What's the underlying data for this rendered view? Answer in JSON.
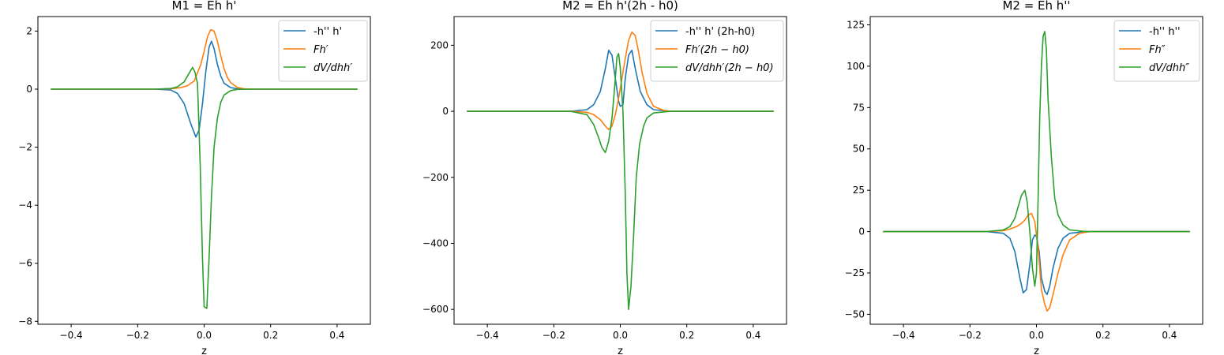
{
  "chart_data": [
    {
      "type": "line",
      "title": "M1 = Eh h'",
      "xlabel": "z",
      "ylabel": "",
      "xlim": [
        -0.5,
        0.5
      ],
      "ylim": [
        -8.1,
        2.5
      ],
      "xticks": [
        -0.4,
        -0.2,
        0.0,
        0.2,
        0.4
      ],
      "xtick_labels": [
        "−0.4",
        "−0.2",
        "0.0",
        "0.2",
        "0.4"
      ],
      "yticks": [
        -8,
        -6,
        -4,
        -2,
        0,
        2
      ],
      "ytick_labels": [
        "−8",
        "−6",
        "−4",
        "−2",
        "0",
        "2"
      ],
      "legend_position": "upper right",
      "series": [
        {
          "name": "-h'' h'",
          "color": "#1f77b4",
          "points": [
            [
              -0.46,
              0
            ],
            [
              -0.3,
              0
            ],
            [
              -0.15,
              0
            ],
            [
              -0.1,
              -0.03
            ],
            [
              -0.08,
              -0.15
            ],
            [
              -0.06,
              -0.5
            ],
            [
              -0.04,
              -1.2
            ],
            [
              -0.025,
              -1.65
            ],
            [
              -0.015,
              -1.4
            ],
            [
              -0.005,
              -0.5
            ],
            [
              0.005,
              0.6
            ],
            [
              0.015,
              1.45
            ],
            [
              0.022,
              1.65
            ],
            [
              0.03,
              1.4
            ],
            [
              0.04,
              0.85
            ],
            [
              0.05,
              0.45
            ],
            [
              0.06,
              0.2
            ],
            [
              0.08,
              0.05
            ],
            [
              0.1,
              0.01
            ],
            [
              0.15,
              0
            ],
            [
              0.3,
              0
            ],
            [
              0.46,
              0
            ]
          ]
        },
        {
          "name": "Fh′",
          "color": "#ff7f0e",
          "points": [
            [
              -0.46,
              0
            ],
            [
              -0.3,
              0
            ],
            [
              -0.15,
              0
            ],
            [
              -0.1,
              0.01
            ],
            [
              -0.07,
              0.05
            ],
            [
              -0.05,
              0.12
            ],
            [
              -0.03,
              0.28
            ],
            [
              -0.01,
              0.85
            ],
            [
              0.0,
              1.3
            ],
            [
              0.01,
              1.8
            ],
            [
              0.02,
              2.05
            ],
            [
              0.03,
              2.0
            ],
            [
              0.04,
              1.65
            ],
            [
              0.05,
              1.15
            ],
            [
              0.06,
              0.7
            ],
            [
              0.07,
              0.4
            ],
            [
              0.08,
              0.22
            ],
            [
              0.1,
              0.06
            ],
            [
              0.12,
              0.01
            ],
            [
              0.15,
              0
            ],
            [
              0.3,
              0
            ],
            [
              0.46,
              0
            ]
          ]
        },
        {
          "name": "dV/dhh′",
          "color": "#2ca02c",
          "points": [
            [
              -0.46,
              0
            ],
            [
              -0.3,
              0
            ],
            [
              -0.15,
              0
            ],
            [
              -0.1,
              0.02
            ],
            [
              -0.08,
              0.08
            ],
            [
              -0.06,
              0.25
            ],
            [
              -0.045,
              0.55
            ],
            [
              -0.035,
              0.75
            ],
            [
              -0.028,
              0.6
            ],
            [
              -0.02,
              0.2
            ],
            [
              -0.012,
              -2.5
            ],
            [
              -0.005,
              -5.8
            ],
            [
              0.0,
              -7.5
            ],
            [
              0.008,
              -7.55
            ],
            [
              0.015,
              -5.8
            ],
            [
              0.022,
              -3.7
            ],
            [
              0.03,
              -2.0
            ],
            [
              0.04,
              -1.0
            ],
            [
              0.05,
              -0.45
            ],
            [
              0.06,
              -0.2
            ],
            [
              0.08,
              -0.05
            ],
            [
              0.1,
              -0.01
            ],
            [
              0.15,
              0
            ],
            [
              0.3,
              0
            ],
            [
              0.46,
              0
            ]
          ]
        }
      ]
    },
    {
      "type": "line",
      "title": "M2 = Eh h'(2h - h0)",
      "xlabel": "z",
      "ylabel": "",
      "xlim": [
        -0.5,
        0.5
      ],
      "ylim": [
        -645,
        287
      ],
      "xticks": [
        -0.4,
        -0.2,
        0.0,
        0.2,
        0.4
      ],
      "xtick_labels": [
        "−0.4",
        "−0.2",
        "0.0",
        "0.2",
        "0.4"
      ],
      "yticks": [
        -600,
        -400,
        -200,
        0,
        200
      ],
      "ytick_labels": [
        "−600",
        "−400",
        "−200",
        "0",
        "200"
      ],
      "legend_position": "upper right",
      "series": [
        {
          "name": "-h'' h' (2h-h0)",
          "color": "#1f77b4",
          "points": [
            [
              -0.46,
              0
            ],
            [
              -0.3,
              0
            ],
            [
              -0.15,
              0
            ],
            [
              -0.1,
              5
            ],
            [
              -0.08,
              20
            ],
            [
              -0.06,
              60
            ],
            [
              -0.045,
              130
            ],
            [
              -0.035,
              185
            ],
            [
              -0.025,
              170
            ],
            [
              -0.015,
              100
            ],
            [
              -0.005,
              30
            ],
            [
              0.0,
              15
            ],
            [
              0.008,
              20
            ],
            [
              0.015,
              100
            ],
            [
              0.025,
              170
            ],
            [
              0.035,
              185
            ],
            [
              0.045,
              130
            ],
            [
              0.06,
              60
            ],
            [
              0.08,
              20
            ],
            [
              0.1,
              5
            ],
            [
              0.15,
              0
            ],
            [
              0.3,
              0
            ],
            [
              0.46,
              0
            ]
          ]
        },
        {
          "name": "Fh′(2h − h0)",
          "color": "#ff7f0e",
          "points": [
            [
              -0.46,
              0
            ],
            [
              -0.3,
              0
            ],
            [
              -0.15,
              0
            ],
            [
              -0.1,
              -3
            ],
            [
              -0.08,
              -10
            ],
            [
              -0.06,
              -25
            ],
            [
              -0.045,
              -45
            ],
            [
              -0.035,
              -55
            ],
            [
              -0.025,
              -45
            ],
            [
              -0.015,
              -10
            ],
            [
              -0.005,
              40
            ],
            [
              0.005,
              100
            ],
            [
              0.015,
              160
            ],
            [
              0.025,
              215
            ],
            [
              0.035,
              240
            ],
            [
              0.045,
              230
            ],
            [
              0.055,
              180
            ],
            [
              0.065,
              120
            ],
            [
              0.08,
              55
            ],
            [
              0.1,
              15
            ],
            [
              0.13,
              3
            ],
            [
              0.15,
              0
            ],
            [
              0.3,
              0
            ],
            [
              0.46,
              0
            ]
          ]
        },
        {
          "name": "dV/dhh′(2h − h0)",
          "color": "#2ca02c",
          "points": [
            [
              -0.46,
              0
            ],
            [
              -0.3,
              0
            ],
            [
              -0.15,
              0
            ],
            [
              -0.1,
              -10
            ],
            [
              -0.08,
              -40
            ],
            [
              -0.065,
              -80
            ],
            [
              -0.055,
              -110
            ],
            [
              -0.045,
              -125
            ],
            [
              -0.035,
              -90
            ],
            [
              -0.025,
              -20
            ],
            [
              -0.018,
              60
            ],
            [
              -0.01,
              165
            ],
            [
              -0.005,
              175
            ],
            [
              0.0,
              130
            ],
            [
              0.008,
              0
            ],
            [
              0.015,
              -250
            ],
            [
              0.02,
              -490
            ],
            [
              0.025,
              -600
            ],
            [
              0.032,
              -530
            ],
            [
              0.04,
              -380
            ],
            [
              0.048,
              -200
            ],
            [
              0.058,
              -100
            ],
            [
              0.07,
              -45
            ],
            [
              0.08,
              -20
            ],
            [
              0.1,
              -5
            ],
            [
              0.15,
              0
            ],
            [
              0.3,
              0
            ],
            [
              0.46,
              0
            ]
          ]
        }
      ]
    },
    {
      "type": "line",
      "title": "M2 = Eh h''",
      "xlabel": "z",
      "ylabel": "",
      "xlim": [
        -0.5,
        0.5
      ],
      "ylim": [
        -56,
        130
      ],
      "xticks": [
        -0.4,
        -0.2,
        0.0,
        0.2,
        0.4
      ],
      "xtick_labels": [
        "−0.4",
        "−0.2",
        "0.0",
        "0.2",
        "0.4"
      ],
      "yticks": [
        -50,
        -25,
        0,
        25,
        50,
        75,
        100,
        125
      ],
      "ytick_labels": [
        "−50",
        "−25",
        "0",
        "25",
        "50",
        "75",
        "100",
        "125"
      ],
      "legend_position": "upper right",
      "series": [
        {
          "name": "-h'' h''",
          "color": "#1f77b4",
          "points": [
            [
              -0.46,
              0
            ],
            [
              -0.3,
              0
            ],
            [
              -0.15,
              0
            ],
            [
              -0.1,
              -1
            ],
            [
              -0.08,
              -4
            ],
            [
              -0.065,
              -12
            ],
            [
              -0.05,
              -28
            ],
            [
              -0.04,
              -37
            ],
            [
              -0.03,
              -35
            ],
            [
              -0.02,
              -20
            ],
            [
              -0.012,
              -5
            ],
            [
              -0.005,
              -2
            ],
            [
              0.0,
              -3
            ],
            [
              0.008,
              -12
            ],
            [
              0.015,
              -28
            ],
            [
              0.025,
              -36
            ],
            [
              0.032,
              -38
            ],
            [
              0.04,
              -33
            ],
            [
              0.05,
              -22
            ],
            [
              0.065,
              -10
            ],
            [
              0.08,
              -4
            ],
            [
              0.1,
              -1
            ],
            [
              0.15,
              0
            ],
            [
              0.3,
              0
            ],
            [
              0.46,
              0
            ]
          ]
        },
        {
          "name": "Fh″",
          "color": "#ff7f0e",
          "points": [
            [
              -0.46,
              0
            ],
            [
              -0.3,
              0
            ],
            [
              -0.15,
              0
            ],
            [
              -0.1,
              0.5
            ],
            [
              -0.08,
              1.5
            ],
            [
              -0.06,
              3
            ],
            [
              -0.045,
              5
            ],
            [
              -0.035,
              7
            ],
            [
              -0.025,
              10
            ],
            [
              -0.015,
              11
            ],
            [
              -0.005,
              6
            ],
            [
              0.005,
              -10
            ],
            [
              0.015,
              -35
            ],
            [
              0.025,
              -44
            ],
            [
              0.032,
              -48
            ],
            [
              0.04,
              -46
            ],
            [
              0.05,
              -38
            ],
            [
              0.065,
              -25
            ],
            [
              0.08,
              -14
            ],
            [
              0.1,
              -5
            ],
            [
              0.13,
              -1
            ],
            [
              0.16,
              0
            ],
            [
              0.3,
              0
            ],
            [
              0.46,
              0
            ]
          ]
        },
        {
          "name": "dV/dhh″",
          "color": "#2ca02c",
          "points": [
            [
              -0.46,
              0
            ],
            [
              -0.3,
              0
            ],
            [
              -0.15,
              0
            ],
            [
              -0.1,
              1
            ],
            [
              -0.08,
              3
            ],
            [
              -0.065,
              8
            ],
            [
              -0.055,
              15
            ],
            [
              -0.045,
              22
            ],
            [
              -0.035,
              25
            ],
            [
              -0.028,
              18
            ],
            [
              -0.02,
              0
            ],
            [
              -0.012,
              -22
            ],
            [
              -0.005,
              -33
            ],
            [
              0.0,
              -25
            ],
            [
              0.005,
              20
            ],
            [
              0.01,
              70
            ],
            [
              0.015,
              100
            ],
            [
              0.02,
              118
            ],
            [
              0.025,
              121
            ],
            [
              0.03,
              110
            ],
            [
              0.035,
              80
            ],
            [
              0.045,
              45
            ],
            [
              0.055,
              20
            ],
            [
              0.065,
              10
            ],
            [
              0.08,
              4
            ],
            [
              0.1,
              1
            ],
            [
              0.15,
              0
            ],
            [
              0.3,
              0
            ],
            [
              0.46,
              0
            ]
          ]
        }
      ]
    }
  ]
}
